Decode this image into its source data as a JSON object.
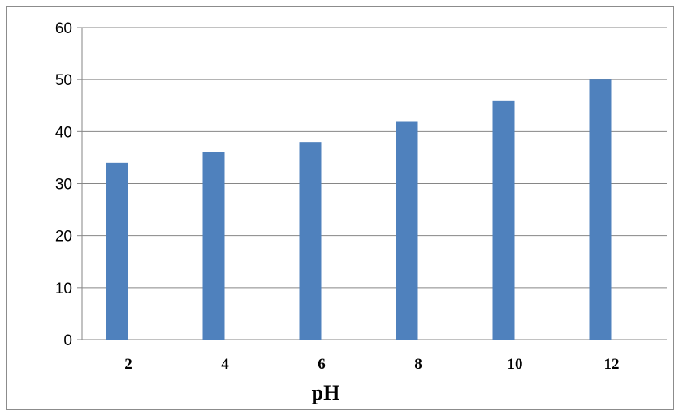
{
  "chart_data": {
    "type": "bar",
    "categories": [
      "2",
      "4",
      "6",
      "8",
      "10",
      "12"
    ],
    "values": [
      34,
      36,
      38,
      42,
      46,
      50
    ],
    "title": "",
    "xlabel": "pH",
    "ylabel": "",
    "ylim": [
      0,
      60
    ],
    "yticks": [
      0,
      10,
      20,
      30,
      40,
      50,
      60
    ],
    "grid": true,
    "legend": "none",
    "bar_color": "#4f81bd",
    "grid_color": "#868686"
  }
}
